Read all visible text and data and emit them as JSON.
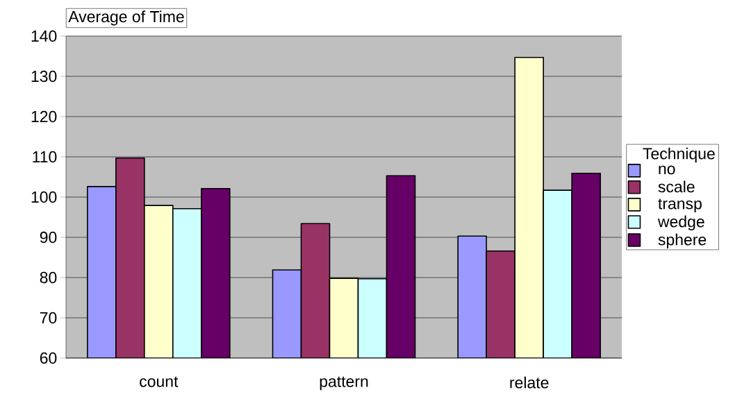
{
  "chart_data": {
    "type": "bar",
    "title": "Average of Time",
    "legend_title": "Technique",
    "categories": [
      "count",
      "pattern",
      "relate"
    ],
    "series": [
      {
        "name": "no",
        "color": "#9999ff",
        "values": [
          102.6,
          81.9,
          90.3
        ]
      },
      {
        "name": "scale",
        "color": "#993366",
        "values": [
          109.7,
          93.4,
          86.6
        ]
      },
      {
        "name": "transp",
        "color": "#ffffcc",
        "values": [
          97.9,
          79.8,
          134.7
        ]
      },
      {
        "name": "wedge",
        "color": "#ccffff",
        "values": [
          97.1,
          79.7,
          101.7
        ]
      },
      {
        "name": "sphere",
        "color": "#660066",
        "values": [
          102.1,
          105.3,
          105.9
        ]
      }
    ],
    "ylim": [
      60,
      140
    ],
    "yticks": [
      60,
      70,
      80,
      90,
      100,
      110,
      120,
      130,
      140
    ],
    "grid": "y",
    "legend": "right"
  }
}
